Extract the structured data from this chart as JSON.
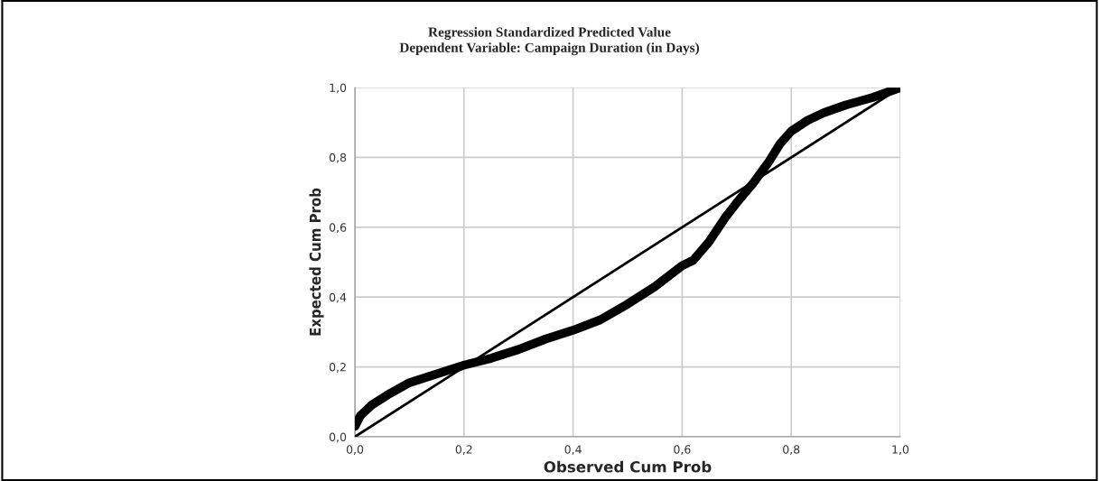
{
  "chart_data": {
    "type": "line",
    "title": "Regression Standardized Predicted Value\nDependent Variable: Campaign Duration (in Days)",
    "xlabel": "Observed Cum Prob",
    "ylabel": "Expected Cum Prob",
    "series": [
      {
        "color": "#000000",
        "x": [
          0.0,
          0.01,
          0.03,
          0.06,
          0.1,
          0.15,
          0.2,
          0.25,
          0.3,
          0.35,
          0.4,
          0.45,
          0.5,
          0.55,
          0.6,
          0.62,
          0.65,
          0.68,
          0.7,
          0.73,
          0.76,
          0.78,
          0.8,
          0.83,
          0.86,
          0.9,
          0.95,
          1.0
        ],
        "values": [
          0.03,
          0.06,
          0.09,
          0.12,
          0.155,
          0.18,
          0.205,
          0.225,
          0.25,
          0.28,
          0.305,
          0.335,
          0.38,
          0.43,
          0.49,
          0.505,
          0.56,
          0.63,
          0.67,
          0.726,
          0.79,
          0.84,
          0.875,
          0.906,
          0.928,
          0.95,
          0.972,
          1.0
        ]
      },
      {
        "color": "#000000",
        "x": [
          0.0,
          1.0
        ],
        "values": [
          0.0,
          1.0
        ]
      }
    ],
    "xlim": [
      0,
      1
    ],
    "ylim": [
      0,
      1
    ],
    "xticks": [
      {
        "value": 0,
        "label": "0,0"
      },
      {
        "value": 0.2,
        "label": "0,2"
      },
      {
        "value": 0.4,
        "label": "0,4"
      },
      {
        "value": 0.6,
        "label": "0,6"
      },
      {
        "value": 0.8,
        "label": "0,8"
      },
      {
        "value": 1,
        "label": "1,0"
      }
    ],
    "yticks": [
      {
        "value": 0,
        "label": "0,0"
      },
      {
        "value": 0.2,
        "label": "0,2"
      },
      {
        "value": 0.4,
        "label": "0,4"
      },
      {
        "value": 0.6,
        "label": "0,6"
      },
      {
        "value": 0.8,
        "label": "0,8"
      },
      {
        "value": 1,
        "label": "1,0"
      }
    ],
    "grid": true,
    "legend": false,
    "marker": "none",
    "line_style": "solid"
  }
}
